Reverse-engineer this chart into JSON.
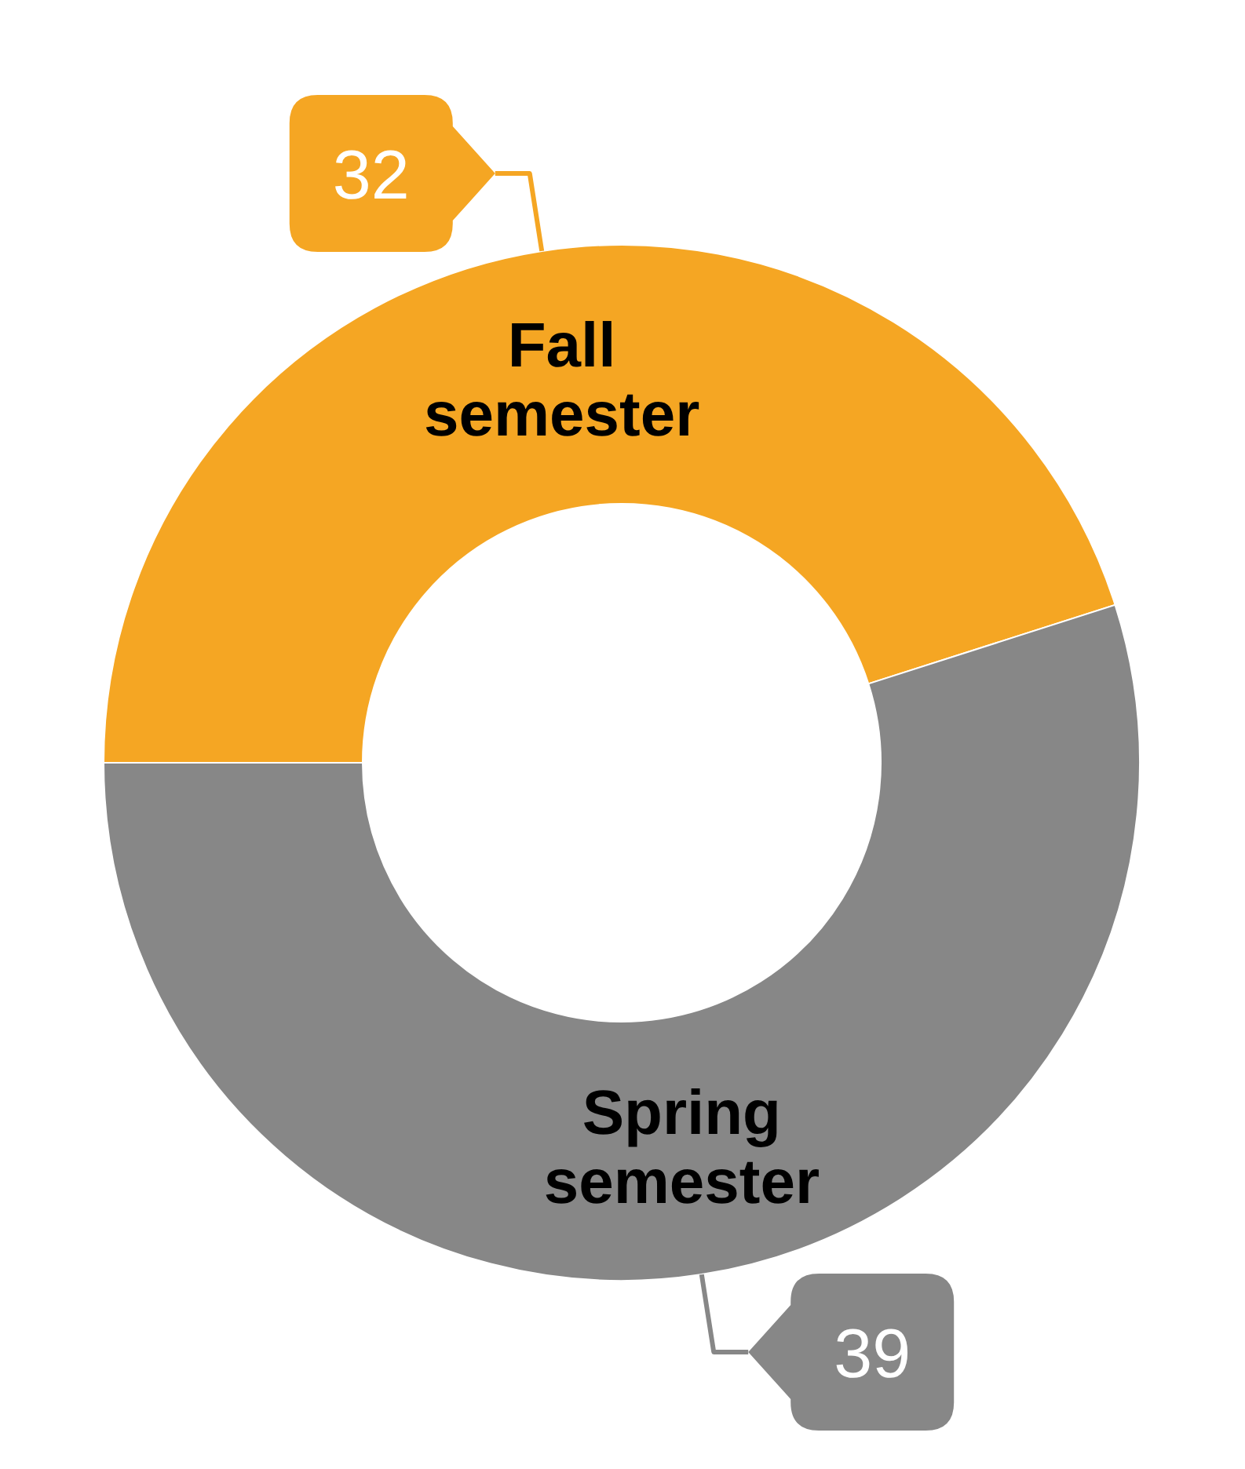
{
  "chart_data": {
    "type": "donut",
    "categories": [
      "Fall semester",
      "Spring semester"
    ],
    "values": [
      32,
      39
    ],
    "colors": [
      "#f5a623",
      "#878787"
    ],
    "data_labels": true
  }
}
